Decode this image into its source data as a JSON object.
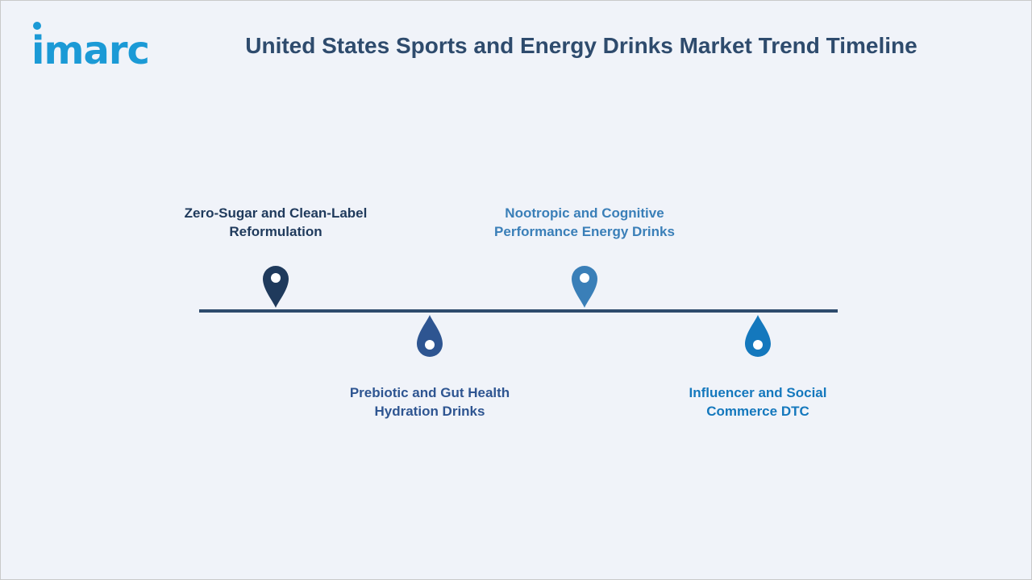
{
  "brand": {
    "logo_text": "imarc",
    "color": "#1b9ad6"
  },
  "title": "United States Sports and Energy Drinks Market Trend Timeline",
  "timeline": {
    "items": [
      {
        "line1": "Zero-Sugar and Clean-Label",
        "line2": "Reformulation",
        "position": "above",
        "color": "#1f3a5c",
        "icon": "map-pin-icon"
      },
      {
        "line1": "Prebiotic and Gut Health",
        "line2": "Hydration Drinks",
        "position": "below",
        "color": "#2e5591",
        "icon": "drop-pin-icon"
      },
      {
        "line1": "Nootropic and Cognitive",
        "line2": "Performance Energy Drinks",
        "position": "above",
        "color": "#3a7fb8",
        "icon": "map-pin-icon"
      },
      {
        "line1": "Influencer and Social",
        "line2": "Commerce DTC",
        "position": "below",
        "color": "#1478bd",
        "icon": "drop-pin-icon"
      }
    ]
  }
}
